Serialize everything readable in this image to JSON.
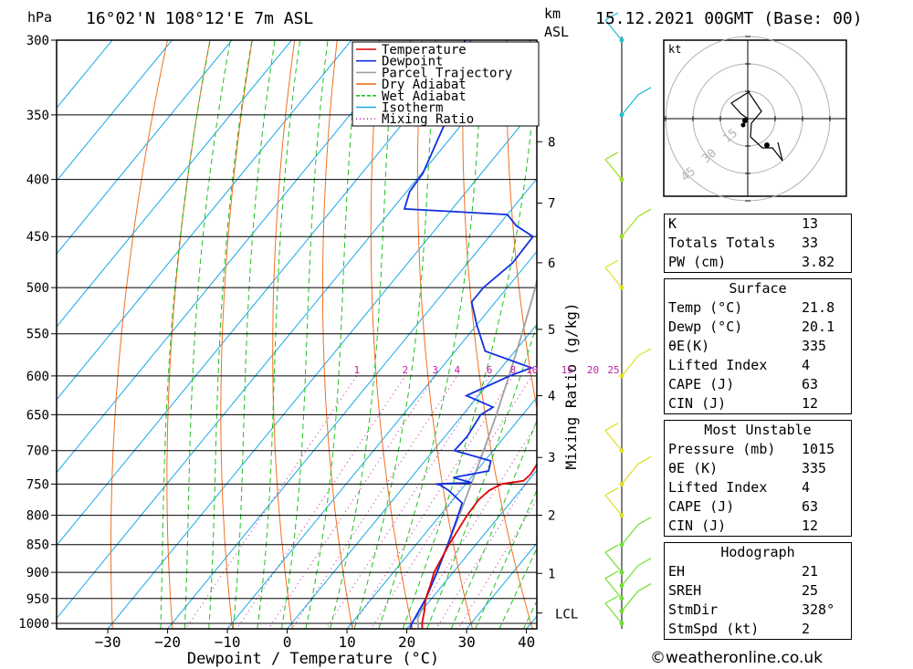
{
  "header": {
    "location": "16°02'N  108°12'E  7m  ASL",
    "datetime": "15.12.2021  00GMT  (Base: 00)",
    "pressure_unit": "hPa",
    "height_unit_km": "km",
    "height_unit_asl": "ASL"
  },
  "chart_data": {
    "type": "line",
    "title": "",
    "xlabel": "Dewpoint / Temperature (°C)",
    "ylabel": "Mixing Ratio (g/kg)",
    "x_ticks": [
      "−30",
      "−20",
      "−10",
      "0",
      "10",
      "20",
      "30",
      "40"
    ],
    "x_tick_values": [
      -30,
      -20,
      -10,
      0,
      10,
      20,
      30,
      40
    ],
    "xlim": [
      -40,
      40
    ],
    "pressure_levels": [
      300,
      350,
      400,
      450,
      500,
      550,
      600,
      650,
      700,
      750,
      800,
      850,
      900,
      950,
      1000
    ],
    "pressure_tick_labels": [
      "300",
      "350",
      "400",
      "450",
      "500",
      "550",
      "600",
      "650",
      "700",
      "750",
      "800",
      "850",
      "900",
      "950",
      "1000"
    ],
    "ylim_hpa": [
      1000,
      300
    ],
    "y_scale": "log-pressure",
    "skew": "skewed isotherms",
    "height_km_ticks": [
      {
        "km": 1,
        "p": 902,
        "label": "1"
      },
      {
        "km": 2,
        "p": 800,
        "label": "2"
      },
      {
        "km": 3,
        "p": 710,
        "label": "3"
      },
      {
        "km": 4,
        "p": 625,
        "label": "4"
      },
      {
        "km": 5,
        "p": 545,
        "label": "5"
      },
      {
        "km": 6,
        "p": 475,
        "label": "6"
      },
      {
        "km": 7,
        "p": 420,
        "label": "7"
      },
      {
        "km": 8,
        "p": 370,
        "label": "8"
      }
    ],
    "lcl": {
      "label": "LCL",
      "p": 990
    },
    "mixing_ratio_labels": [
      "1",
      "2",
      "3",
      "4",
      "6",
      "8",
      "10",
      "15",
      "20",
      "25"
    ],
    "legend": [
      "Temperature",
      "Dewpoint",
      "Parcel Trajectory",
      "Dry Adiabat",
      "Wet Adiabat",
      "Isotherm",
      "Mixing Ratio"
    ],
    "legend_placement": "top-center",
    "series": [
      {
        "name": "Temperature",
        "color": "#e00000",
        "points": [
          [
            1010,
            22.5
          ],
          [
            1000,
            21.8
          ],
          [
            975,
            20.5
          ],
          [
            950,
            19.0
          ],
          [
            925,
            18.0
          ],
          [
            900,
            16.8
          ],
          [
            850,
            15.5
          ],
          [
            800,
            14.5
          ],
          [
            775,
            14.3
          ],
          [
            760,
            14.8
          ],
          [
            750,
            16.0
          ],
          [
            745,
            19.2
          ],
          [
            735,
            19.5
          ],
          [
            720,
            19.2
          ],
          [
            700,
            18.6
          ],
          [
            650,
            15.6
          ],
          [
            620,
            13.3
          ],
          [
            600,
            12.6
          ],
          [
            580,
            12.0
          ],
          [
            565,
            11.2
          ],
          [
            550,
            10.9
          ],
          [
            525,
            9.8
          ],
          [
            500,
            8.7
          ],
          [
            475,
            6.0
          ],
          [
            460,
            4.2
          ],
          [
            440,
            3.0
          ],
          [
            430,
            2.6
          ],
          [
            420,
            3.0
          ],
          [
            400,
            1.0
          ],
          [
            380,
            -1.0
          ],
          [
            362,
            -3.0
          ]
        ]
      },
      {
        "name": "Dewpoint",
        "color": "#1030e0",
        "points": [
          [
            1010,
            20.5
          ],
          [
            1000,
            20.1
          ],
          [
            950,
            19.0
          ],
          [
            900,
            17.3
          ],
          [
            850,
            15.3
          ],
          [
            800,
            13.0
          ],
          [
            780,
            12.0
          ],
          [
            760,
            8.0
          ],
          [
            752,
            6.0
          ],
          [
            750,
            5.0
          ],
          [
            748,
            10.8
          ],
          [
            740,
            7.0
          ],
          [
            730,
            12.0
          ],
          [
            715,
            11.0
          ],
          [
            700,
            3.5
          ],
          [
            680,
            3.7
          ],
          [
            650,
            3.0
          ],
          [
            640,
            4.0
          ],
          [
            625,
            -2.0
          ],
          [
            600,
            2.5
          ],
          [
            590,
            5.0
          ],
          [
            585,
            2.5
          ],
          [
            570,
            -5.0
          ],
          [
            540,
            -10.0
          ],
          [
            515,
            -14.0
          ],
          [
            500,
            -14.0
          ],
          [
            475,
            -12.5
          ],
          [
            450,
            -12.7
          ],
          [
            440,
            -17.0
          ],
          [
            430,
            -20.0
          ],
          [
            425,
            -38.0
          ],
          [
            410,
            -39.5
          ],
          [
            395,
            -39.8
          ],
          [
            350,
            -43.5
          ],
          [
            300,
            -51.0
          ]
        ]
      },
      {
        "name": "Parcel Trajectory",
        "color": "#a0a0a0",
        "points": [
          [
            1010,
            21.8
          ],
          [
            990,
            20.4
          ],
          [
            950,
            19.1
          ],
          [
            900,
            17.2
          ],
          [
            850,
            15.3
          ],
          [
            800,
            13.2
          ],
          [
            750,
            10.9
          ],
          [
            700,
            8.4
          ],
          [
            650,
            5.6
          ],
          [
            600,
            2.4
          ],
          [
            550,
            -1.2
          ],
          [
            500,
            -5.3
          ],
          [
            450,
            -10.3
          ],
          [
            400,
            -16.3
          ],
          [
            350,
            -23.8
          ],
          [
            300,
            -33.0
          ]
        ]
      }
    ],
    "wind_barbs": {
      "levels": [
        1000,
        975,
        950,
        925,
        900,
        850,
        800,
        750,
        700,
        600,
        500,
        450,
        400,
        350,
        300
      ],
      "color_scale": "green-yellow-cyan"
    },
    "hodograph": {
      "unit_label": "kt",
      "ring_labels": [
        "15",
        "30",
        "45"
      ]
    }
  },
  "indices_table": [
    {
      "label": "K",
      "value": "13"
    },
    {
      "label": "Totals Totals",
      "value": "33"
    },
    {
      "label": "PW (cm)",
      "value": "3.82"
    }
  ],
  "surface_table": {
    "title": "Surface",
    "rows": [
      {
        "label": "Temp (°C)",
        "value": "21.8"
      },
      {
        "label": "Dewp (°C)",
        "value": "20.1"
      },
      {
        "label": "θE(K)",
        "value": "335"
      },
      {
        "label": "Lifted Index",
        "value": "4"
      },
      {
        "label": "CAPE (J)",
        "value": "63"
      },
      {
        "label": "CIN (J)",
        "value": "12"
      }
    ]
  },
  "most_unstable_table": {
    "title": "Most Unstable",
    "rows": [
      {
        "label": "Pressure (mb)",
        "value": "1015"
      },
      {
        "label": "θE (K)",
        "value": "335"
      },
      {
        "label": "Lifted Index",
        "value": "4"
      },
      {
        "label": "CAPE (J)",
        "value": "63"
      },
      {
        "label": "CIN (J)",
        "value": "12"
      }
    ]
  },
  "hodograph_table": {
    "title": "Hodograph",
    "rows": [
      {
        "label": "EH",
        "value": "21"
      },
      {
        "label": "SREH",
        "value": "25"
      },
      {
        "label": "StmDir",
        "value": "328°"
      },
      {
        "label": "StmSpd (kt)",
        "value": "2"
      }
    ]
  },
  "footer": {
    "credit": "©weatheronline.co.uk"
  }
}
